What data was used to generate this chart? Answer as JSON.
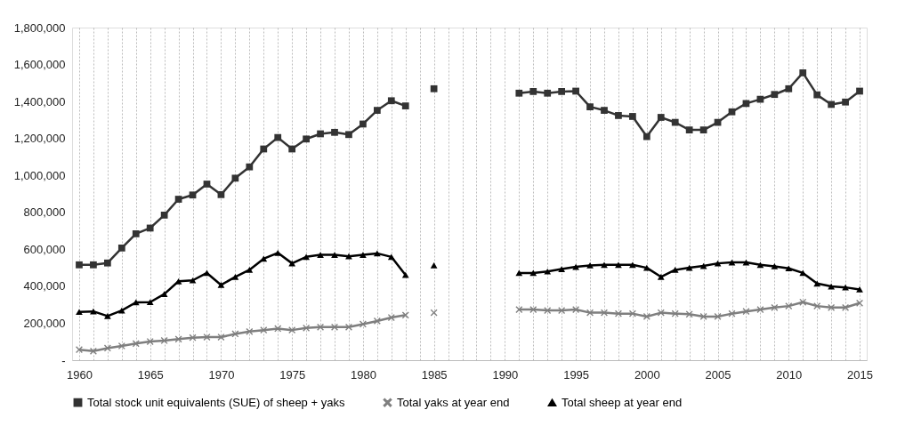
{
  "chart_data": {
    "type": "line",
    "x": [
      1960,
      1961,
      1962,
      1963,
      1964,
      1965,
      1966,
      1967,
      1968,
      1969,
      1970,
      1971,
      1972,
      1973,
      1974,
      1975,
      1976,
      1977,
      1978,
      1979,
      1980,
      1981,
      1982,
      1983,
      1984,
      1985,
      1986,
      1987,
      1988,
      1989,
      1990,
      1991,
      1992,
      1993,
      1994,
      1995,
      1996,
      1997,
      1998,
      1999,
      2000,
      2001,
      2002,
      2003,
      2004,
      2005,
      2006,
      2007,
      2008,
      2009,
      2010,
      2011,
      2012,
      2013,
      2014,
      2015
    ],
    "series": [
      {
        "name": "Total stock unit equivalents (SUE) of sheep + yaks",
        "color": "#333333",
        "marker": "square",
        "values": [
          516000,
          516000,
          526000,
          607000,
          684000,
          715000,
          785000,
          871000,
          894000,
          953000,
          896000,
          985000,
          1046000,
          1143000,
          1205000,
          1143000,
          1197000,
          1225000,
          1233000,
          1221000,
          1278000,
          1352000,
          1404000,
          1376000,
          null,
          1469000,
          null,
          null,
          null,
          null,
          null,
          1445000,
          1454000,
          1445000,
          1454000,
          1456000,
          1371000,
          1352000,
          1324000,
          1319000,
          1210000,
          1314000,
          1287000,
          1246000,
          1246000,
          1287000,
          1344000,
          1389000,
          1412000,
          1438000,
          1469000,
          1555000,
          1436000,
          1384000,
          1397000,
          1456000
        ]
      },
      {
        "name": "Total yaks at year end",
        "color": "#7f7f7f",
        "marker": "cross",
        "values": [
          57000,
          49000,
          65000,
          77000,
          90000,
          101000,
          106000,
          114000,
          122000,
          125000,
          125000,
          142000,
          155000,
          163000,
          171000,
          163000,
          174000,
          179000,
          179000,
          179000,
          195000,
          212000,
          231000,
          244000,
          null,
          257000,
          null,
          null,
          null,
          null,
          null,
          274000,
          274000,
          269000,
          269000,
          274000,
          257000,
          257000,
          252000,
          252000,
          236000,
          257000,
          252000,
          249000,
          236000,
          236000,
          252000,
          264000,
          274000,
          285000,
          293000,
          314000,
          293000,
          285000,
          285000,
          309000
        ]
      },
      {
        "name": "Total sheep at year end",
        "color": "#000000",
        "marker": "triangle",
        "values": [
          261000,
          264000,
          239000,
          269000,
          313000,
          314000,
          358000,
          427000,
          432000,
          472000,
          407000,
          451000,
          489000,
          549000,
          581000,
          524000,
          559000,
          570000,
          570000,
          562000,
          570000,
          578000,
          559000,
          461000,
          null,
          513000,
          null,
          null,
          null,
          null,
          null,
          472000,
          472000,
          480000,
          493000,
          505000,
          513000,
          516000,
          516000,
          516000,
          500000,
          451000,
          489000,
          500000,
          510000,
          524000,
          529000,
          529000,
          516000,
          508000,
          497000,
          472000,
          415000,
          399000,
          394000,
          383000
        ]
      }
    ],
    "xlim": [
      1959.5,
      2015.5
    ],
    "xticks": [
      1960,
      {
        "value": 1961,
        "label": null
      },
      {
        "value": 1962,
        "label": null
      },
      {
        "value": 1963,
        "label": null
      },
      {
        "value": 1964,
        "label": null
      },
      1965,
      {
        "value": 1966,
        "label": null
      },
      {
        "value": 1967,
        "label": null
      },
      {
        "value": 1968,
        "label": null
      },
      {
        "value": 1969,
        "label": null
      },
      1970,
      {
        "value": 1971,
        "label": null
      },
      {
        "value": 1972,
        "label": null
      },
      {
        "value": 1973,
        "label": null
      },
      {
        "value": 1974,
        "label": null
      },
      1975,
      {
        "value": 1976,
        "label": null
      },
      {
        "value": 1977,
        "label": null
      },
      {
        "value": 1978,
        "label": null
      },
      {
        "value": 1979,
        "label": null
      },
      1980,
      {
        "value": 1981,
        "label": null
      },
      {
        "value": 1982,
        "label": null
      },
      {
        "value": 1983,
        "label": null
      },
      {
        "value": 1984,
        "label": null
      },
      1985,
      {
        "value": 1986,
        "label": null
      },
      {
        "value": 1987,
        "label": null
      },
      {
        "value": 1988,
        "label": null
      },
      {
        "value": 1989,
        "label": null
      },
      1990,
      {
        "value": 1991,
        "label": null
      },
      {
        "value": 1992,
        "label": null
      },
      {
        "value": 1993,
        "label": null
      },
      {
        "value": 1994,
        "label": null
      },
      1995,
      {
        "value": 1996,
        "label": null
      },
      {
        "value": 1997,
        "label": null
      },
      {
        "value": 1998,
        "label": null
      },
      {
        "value": 1999,
        "label": null
      },
      2000,
      {
        "value": 2001,
        "label": null
      },
      {
        "value": 2002,
        "label": null
      },
      {
        "value": 2003,
        "label": null
      },
      {
        "value": 2004,
        "label": null
      },
      2005,
      {
        "value": 2006,
        "label": null
      },
      {
        "value": 2007,
        "label": null
      },
      {
        "value": 2008,
        "label": null
      },
      {
        "value": 2009,
        "label": null
      },
      2010,
      {
        "value": 2011,
        "label": null
      },
      {
        "value": 2012,
        "label": null
      },
      {
        "value": 2013,
        "label": null
      },
      {
        "value": 2014,
        "label": null
      },
      2015
    ],
    "ylim": [
      0,
      1800000
    ],
    "yticks": [
      {
        "value": 0,
        "label": "-"
      },
      {
        "value": 200000,
        "label": "200,000"
      },
      {
        "value": 400000,
        "label": "400,000"
      },
      {
        "value": 600000,
        "label": "600,000"
      },
      {
        "value": 800000,
        "label": "800,000"
      },
      {
        "value": 1000000,
        "label": "1,000,000"
      },
      {
        "value": 1200000,
        "label": "1,200,000"
      },
      {
        "value": 1400000,
        "label": "1,400,000"
      },
      {
        "value": 1600000,
        "label": "1,600,000"
      },
      {
        "value": 1800000,
        "label": "1,800,000"
      }
    ],
    "grid": "x",
    "legend": "bottom",
    "line_style": "solid"
  }
}
